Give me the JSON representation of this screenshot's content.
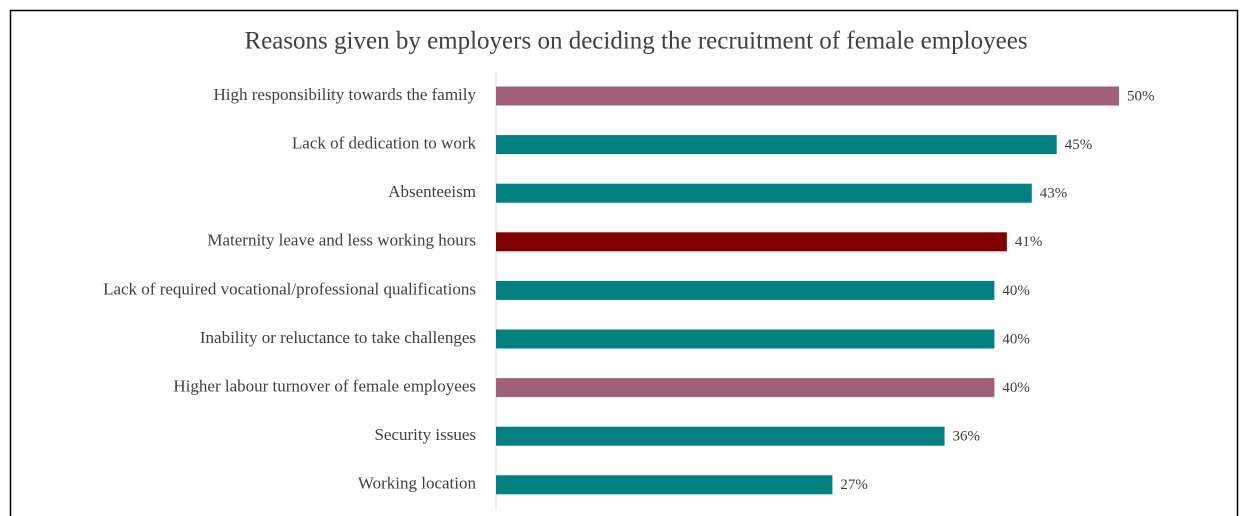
{
  "chart_data": {
    "type": "hbar",
    "title": "Reasons given by employers on deciding the recruitment of female employees",
    "categories": [
      "High responsibility towards the family",
      "Lack of dedication to work",
      "Absenteeism",
      "Maternity leave and less working hours",
      "Lack of required vocational/professional qualifications",
      "Inability or reluctance to take challenges",
      "Higher labour turnover of female employees",
      "Security issues",
      "Working location"
    ],
    "values": [
      50,
      45,
      43,
      41,
      40,
      40,
      40,
      36,
      27
    ],
    "value_labels": [
      "50%",
      "45%",
      "43%",
      "41%",
      "40%",
      "40%",
      "40%",
      "36%",
      "27%"
    ],
    "colors": [
      "#a0607a",
      "#008080",
      "#008080",
      "#800000",
      "#008080",
      "#008080",
      "#a0607a",
      "#008080",
      "#008080"
    ],
    "xlim": [
      0,
      50
    ]
  }
}
